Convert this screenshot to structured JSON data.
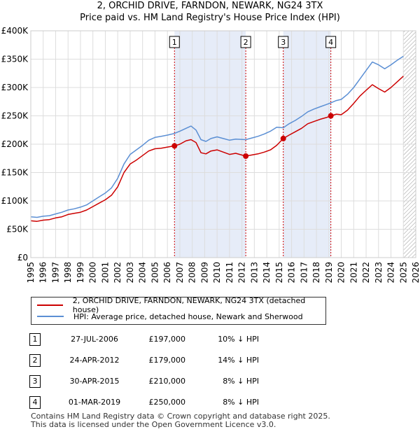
{
  "chart_data": {
    "type": "line",
    "title": "2, ORCHID DRIVE, FARNDON, NEWARK, NG24 3TX",
    "subtitle": "Price paid vs. HM Land Registry's House Price Index (HPI)",
    "xlabel": "",
    "ylabel": "",
    "xlim": [
      1995,
      2026
    ],
    "ylim": [
      0,
      400000
    ],
    "y_ticks": [
      0,
      50000,
      100000,
      150000,
      200000,
      250000,
      300000,
      350000,
      400000
    ],
    "y_tick_labels": [
      "£0",
      "£50K",
      "£100K",
      "£150K",
      "£200K",
      "£250K",
      "£300K",
      "£350K",
      "£400K"
    ],
    "x_ticks": [
      1995,
      1996,
      1997,
      1998,
      1999,
      2000,
      2001,
      2002,
      2003,
      2004,
      2005,
      2006,
      2007,
      2008,
      2009,
      2010,
      2011,
      2012,
      2013,
      2014,
      2015,
      2016,
      2017,
      2018,
      2019,
      2020,
      2021,
      2022,
      2023,
      2024,
      2025,
      2026
    ],
    "x_tick_labels": [
      "1995",
      "1996",
      "1997",
      "1998",
      "1999",
      "2000",
      "2001",
      "2002",
      "2003",
      "2004",
      "2005",
      "2006",
      "2007",
      "2008",
      "2009",
      "2010",
      "2011",
      "2012",
      "2013",
      "2014",
      "2015",
      "2016",
      "2017",
      "2018",
      "2019",
      "2020",
      "2021",
      "2022",
      "2023",
      "2024",
      "2025",
      "2026"
    ],
    "grid": true,
    "series": [
      {
        "name": "2, ORCHID DRIVE, FARNDON, NEWARK, NG24 3TX (detached house)",
        "color": "#cc0000",
        "x": [
          1995.0,
          1995.5,
          1996.0,
          1996.5,
          1997.0,
          1997.5,
          1998.0,
          1998.5,
          1999.0,
          1999.5,
          2000.0,
          2000.5,
          2001.0,
          2001.5,
          2002.0,
          2002.5,
          2003.0,
          2003.5,
          2004.0,
          2004.5,
          2005.0,
          2005.5,
          2006.0,
          2006.57,
          2007.0,
          2007.5,
          2007.9,
          2008.3,
          2008.7,
          2009.1,
          2009.5,
          2010.0,
          2010.5,
          2011.0,
          2011.5,
          2012.31,
          2012.8,
          2013.3,
          2013.8,
          2014.3,
          2014.8,
          2015.33,
          2015.8,
          2016.3,
          2016.8,
          2017.3,
          2017.8,
          2018.3,
          2018.8,
          2019.16,
          2019.6,
          2020.0,
          2020.5,
          2021.0,
          2021.5,
          2022.0,
          2022.5,
          2023.0,
          2023.5,
          2024.0,
          2024.5,
          2025.0
        ],
        "values": [
          65000,
          64000,
          66000,
          67000,
          70000,
          72000,
          76000,
          78000,
          80000,
          84000,
          90000,
          96000,
          102000,
          110000,
          125000,
          150000,
          165000,
          172000,
          180000,
          188000,
          192000,
          193000,
          195000,
          197000,
          200000,
          206000,
          208000,
          203000,
          185000,
          183000,
          188000,
          190000,
          186000,
          182000,
          184000,
          179000,
          181000,
          183000,
          186000,
          190000,
          198000,
          210000,
          216000,
          222000,
          228000,
          236000,
          240000,
          244000,
          247000,
          250000,
          253000,
          252000,
          260000,
          272000,
          285000,
          295000,
          305000,
          298000,
          292000,
          300000,
          310000,
          320000
        ]
      },
      {
        "name": "HPI: Average price, detached house, Newark and Sherwood",
        "color": "#5b8fd4",
        "x": [
          1995.0,
          1995.5,
          1996.0,
          1996.5,
          1997.0,
          1997.5,
          1998.0,
          1998.5,
          1999.0,
          1999.5,
          2000.0,
          2000.5,
          2001.0,
          2001.5,
          2002.0,
          2002.5,
          2003.0,
          2003.5,
          2004.0,
          2004.5,
          2005.0,
          2005.5,
          2006.0,
          2006.57,
          2007.0,
          2007.5,
          2007.9,
          2008.3,
          2008.7,
          2009.1,
          2009.5,
          2010.0,
          2010.5,
          2011.0,
          2011.5,
          2012.31,
          2012.8,
          2013.3,
          2013.8,
          2014.3,
          2014.8,
          2015.33,
          2015.8,
          2016.3,
          2016.8,
          2017.3,
          2017.8,
          2018.3,
          2018.8,
          2019.16,
          2019.6,
          2020.0,
          2020.5,
          2021.0,
          2021.5,
          2022.0,
          2022.5,
          2023.0,
          2023.5,
          2024.0,
          2024.5,
          2025.0
        ],
        "values": [
          72000,
          71000,
          73000,
          74000,
          77000,
          80000,
          84000,
          86000,
          89000,
          93000,
          100000,
          107000,
          114000,
          123000,
          140000,
          165000,
          182000,
          190000,
          198000,
          207000,
          212000,
          214000,
          216000,
          219000,
          223000,
          228000,
          232000,
          225000,
          208000,
          205000,
          210000,
          213000,
          210000,
          207000,
          209000,
          208000,
          211000,
          214000,
          218000,
          223000,
          230000,
          229000,
          236000,
          242000,
          249000,
          257000,
          262000,
          266000,
          270000,
          273000,
          277000,
          279000,
          288000,
          300000,
          315000,
          330000,
          345000,
          340000,
          333000,
          340000,
          348000,
          355000
        ]
      }
    ],
    "markers": [
      {
        "label": "1",
        "x": 2006.57,
        "value": 197000
      },
      {
        "label": "2",
        "x": 2012.31,
        "value": 179000
      },
      {
        "label": "3",
        "x": 2015.33,
        "value": 210000
      },
      {
        "label": "4",
        "x": 2019.16,
        "value": 250000
      }
    ],
    "shaded_ranges": [
      [
        2006.57,
        2012.31
      ],
      [
        2015.33,
        2019.16
      ]
    ],
    "future_hatch_from": 2025.0
  },
  "legend": {
    "property_label": "2, ORCHID DRIVE, FARNDON, NEWARK, NG24 3TX (detached house)",
    "hpi_label": "HPI: Average price, detached house, Newark and Sherwood"
  },
  "sales": [
    {
      "num": "1",
      "date": "27-JUL-2006",
      "price": "£197,000",
      "hpi": "10% ↓ HPI"
    },
    {
      "num": "2",
      "date": "24-APR-2012",
      "price": "£179,000",
      "hpi": "14% ↓ HPI"
    },
    {
      "num": "3",
      "date": "30-APR-2015",
      "price": "£210,000",
      "hpi": "8% ↓ HPI"
    },
    {
      "num": "4",
      "date": "01-MAR-2019",
      "price": "£250,000",
      "hpi": "8% ↓ HPI"
    }
  ],
  "footer": {
    "line1": "Contains HM Land Registry data © Crown copyright and database right 2025.",
    "line2": "This data is licensed under the Open Government Licence v3.0."
  }
}
